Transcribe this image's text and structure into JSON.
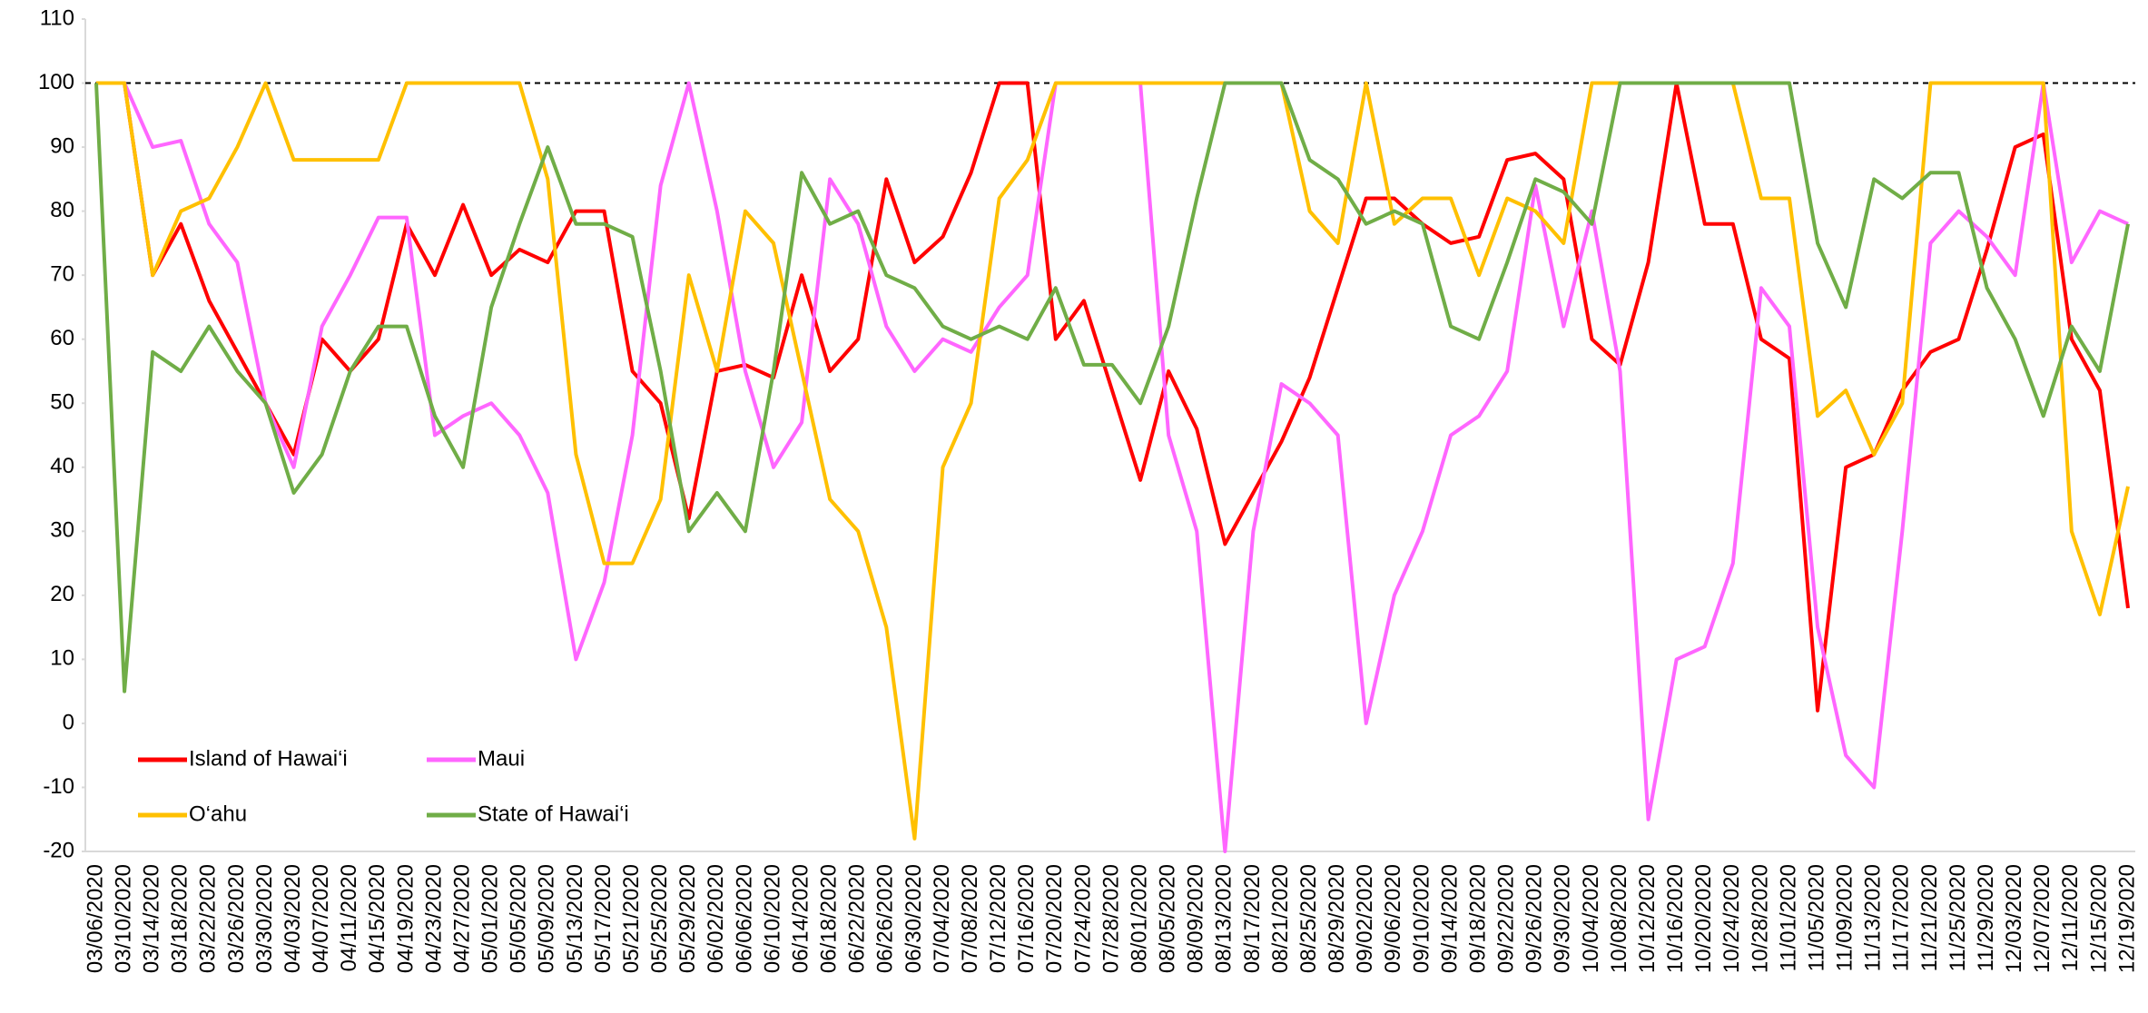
{
  "chart_data": {
    "type": "line",
    "categories": [
      "03/06/2020",
      "03/10/2020",
      "03/14/2020",
      "03/18/2020",
      "03/22/2020",
      "03/26/2020",
      "03/30/2020",
      "04/03/2020",
      "04/07/2020",
      "04/11/2020",
      "04/15/2020",
      "04/19/2020",
      "04/23/2020",
      "04/27/2020",
      "05/01/2020",
      "05/05/2020",
      "05/09/2020",
      "05/13/2020",
      "05/17/2020",
      "05/21/2020",
      "05/25/2020",
      "05/29/2020",
      "06/02/2020",
      "06/06/2020",
      "06/10/2020",
      "06/14/2020",
      "06/18/2020",
      "06/22/2020",
      "06/26/2020",
      "06/30/2020",
      "07/04/2020",
      "07/08/2020",
      "07/12/2020",
      "07/16/2020",
      "07/20/2020",
      "07/24/2020",
      "07/28/2020",
      "08/01/2020",
      "08/05/2020",
      "08/09/2020",
      "08/13/2020",
      "08/17/2020",
      "08/21/2020",
      "08/25/2020",
      "08/29/2020",
      "09/02/2020",
      "09/06/2020",
      "09/10/2020",
      "09/14/2020",
      "09/18/2020",
      "09/22/2020",
      "09/26/2020",
      "09/30/2020",
      "10/04/2020",
      "10/08/2020",
      "10/12/2020",
      "10/16/2020",
      "10/20/2020",
      "10/24/2020",
      "10/28/2020",
      "11/01/2020",
      "11/05/2020",
      "11/09/2020",
      "11/13/2020",
      "11/17/2020",
      "11/21/2020",
      "11/25/2020",
      "11/29/2020",
      "12/03/2020",
      "12/07/2020",
      "12/11/2020",
      "12/15/2020",
      "12/19/2020"
    ],
    "series": [
      {
        "name": "Island of Hawai‘i",
        "color": "#ff0000",
        "values": [
          100,
          100,
          70,
          78,
          66,
          58,
          50,
          42,
          60,
          55,
          60,
          78,
          70,
          81,
          70,
          74,
          72,
          80,
          80,
          55,
          50,
          32,
          55,
          56,
          54,
          70,
          55,
          60,
          85,
          72,
          76,
          86,
          100,
          100,
          60,
          66,
          52,
          38,
          55,
          46,
          28,
          36,
          44,
          54,
          68,
          82,
          82,
          78,
          75,
          76,
          88,
          89,
          85,
          60,
          56,
          72,
          100,
          78,
          78,
          60,
          57,
          2,
          40,
          42,
          52,
          58,
          60,
          74,
          90,
          92,
          60,
          52,
          18
        ]
      },
      {
        "name": "Maui",
        "color": "#ff66ff",
        "values": [
          100,
          100,
          90,
          91,
          78,
          72,
          50,
          40,
          62,
          70,
          79,
          79,
          45,
          48,
          50,
          45,
          36,
          10,
          22,
          45,
          84,
          100,
          80,
          55,
          40,
          47,
          85,
          78,
          62,
          55,
          60,
          58,
          65,
          70,
          100,
          100,
          100,
          100,
          45,
          30,
          -20,
          30,
          53,
          50,
          45,
          0,
          20,
          30,
          45,
          48,
          55,
          84,
          62,
          80,
          55,
          -15,
          10,
          12,
          25,
          68,
          62,
          15,
          -5,
          -10,
          30,
          75,
          80,
          76,
          70,
          100,
          72,
          80,
          78
        ]
      },
      {
        "name": "O‘ahu",
        "color": "#ffc000",
        "values": [
          100,
          100,
          70,
          80,
          82,
          90,
          100,
          88,
          88,
          88,
          88,
          100,
          100,
          100,
          100,
          100,
          85,
          42,
          25,
          25,
          35,
          70,
          55,
          80,
          75,
          55,
          35,
          30,
          15,
          -18,
          40,
          50,
          82,
          88,
          100,
          100,
          100,
          100,
          100,
          100,
          100,
          100,
          100,
          80,
          75,
          100,
          78,
          82,
          82,
          70,
          82,
          80,
          75,
          100,
          100,
          100,
          100,
          100,
          100,
          82,
          82,
          48,
          52,
          42,
          50,
          100,
          100,
          100,
          100,
          100,
          30,
          17,
          37
        ]
      },
      {
        "name": "State of Hawai‘i",
        "color": "#70ad47",
        "values": [
          100,
          5,
          58,
          55,
          62,
          55,
          50,
          36,
          42,
          55,
          62,
          62,
          48,
          40,
          65,
          78,
          90,
          78,
          78,
          76,
          55,
          30,
          36,
          30,
          55,
          86,
          78,
          80,
          70,
          68,
          62,
          60,
          62,
          60,
          68,
          56,
          56,
          50,
          62,
          82,
          100,
          100,
          100,
          88,
          85,
          78,
          80,
          78,
          62,
          60,
          72,
          85,
          83,
          78,
          100,
          100,
          100,
          100,
          100,
          100,
          100,
          75,
          65,
          85,
          82,
          86,
          86,
          68,
          60,
          48,
          62,
          55,
          78
        ]
      }
    ],
    "ylim": [
      -20,
      110
    ],
    "yticks": [
      -20,
      -10,
      0,
      10,
      20,
      30,
      40,
      50,
      60,
      70,
      80,
      90,
      100,
      110
    ],
    "reference_line": 100,
    "grid": false,
    "legend": "lower left"
  }
}
